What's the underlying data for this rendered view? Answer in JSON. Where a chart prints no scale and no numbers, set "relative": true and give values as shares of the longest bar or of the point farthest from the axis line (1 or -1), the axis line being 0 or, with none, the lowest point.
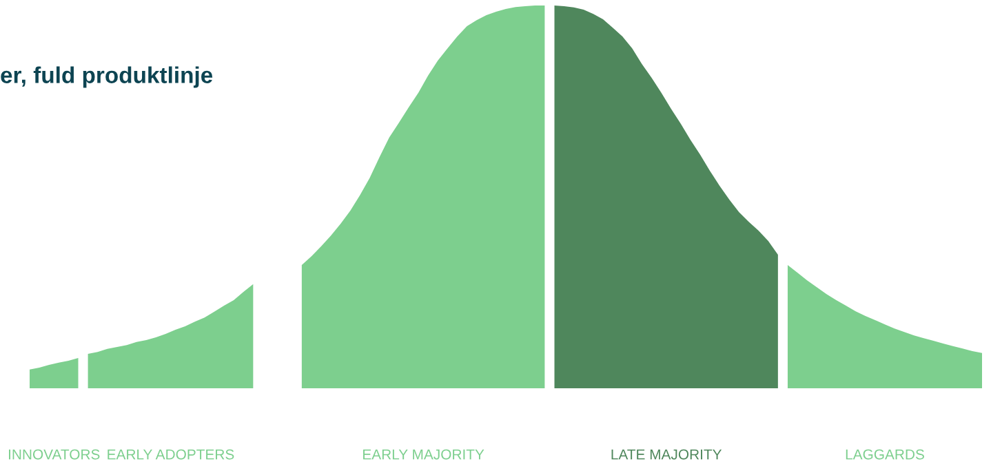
{
  "chart_data": {
    "type": "area",
    "title": "er, fuld produktlinje",
    "relative": true,
    "annotations": [
      "INNOVATORS",
      "EARLY ADOPTERS",
      "EARLY MAJORITY",
      "LATE MAJORITY",
      "LAGGARDS"
    ],
    "categories": [
      null,
      null,
      null,
      null,
      null,
      null,
      null,
      null,
      null,
      null,
      null,
      null,
      null,
      null,
      null,
      null,
      null,
      null,
      null,
      null,
      null,
      null,
      null,
      null,
      null,
      null,
      null,
      null,
      null,
      null,
      null,
      null,
      null,
      null,
      null,
      null,
      null,
      null,
      null,
      null,
      null,
      null,
      null,
      null,
      null,
      null,
      null,
      null,
      null,
      null,
      null,
      null,
      null,
      null,
      null,
      null,
      null,
      null,
      null,
      null,
      null,
      null,
      null,
      null,
      null,
      null,
      null,
      null,
      null,
      null,
      null,
      null,
      null,
      null,
      null,
      null,
      null,
      null,
      null,
      null,
      null,
      null,
      null,
      null,
      null,
      null,
      null,
      null,
      null,
      null,
      null,
      null,
      null,
      null,
      null,
      null,
      null,
      null,
      null
    ],
    "series": [
      {
        "color": "#7dcf8e",
        "values": [
          0.049,
          0.054,
          0.061,
          0.067,
          0.072,
          0.079,
          null,
          null,
          null,
          null,
          null,
          null,
          null,
          null,
          null,
          null,
          null,
          null,
          null,
          null,
          null,
          null,
          null,
          null,
          null,
          null,
          null,
          null,
          null,
          null,
          null,
          null,
          null,
          null,
          null,
          null,
          null,
          null,
          null,
          null,
          null,
          null,
          null,
          null,
          null,
          null,
          null,
          null,
          null,
          null,
          null,
          null,
          null,
          null,
          null,
          null,
          null,
          null,
          null,
          null,
          null,
          null,
          null,
          null,
          null,
          null,
          null,
          null,
          null,
          null,
          null,
          null,
          null,
          null,
          null,
          null,
          null,
          null,
          null,
          null,
          null,
          null,
          null,
          null,
          null,
          null,
          null,
          null,
          null,
          null,
          null,
          null,
          null,
          null,
          null,
          null,
          null,
          null,
          null
        ]
      },
      {
        "color": "#7dcf8e",
        "values": [
          null,
          null,
          null,
          null,
          null,
          null,
          0.09,
          0.095,
          0.103,
          0.108,
          0.113,
          0.121,
          0.126,
          0.133,
          0.142,
          0.153,
          0.162,
          0.174,
          0.185,
          0.2,
          0.216,
          0.23,
          0.252,
          0.272,
          null,
          null,
          null,
          null,
          null,
          null,
          null,
          null,
          null,
          null,
          null,
          null,
          null,
          null,
          null,
          null,
          null,
          null,
          null,
          null,
          null,
          null,
          null,
          null,
          null,
          null,
          null,
          null,
          null,
          null,
          null,
          null,
          null,
          null,
          null,
          null,
          null,
          null,
          null,
          null,
          null,
          null,
          null,
          null,
          null,
          null,
          null,
          null,
          null,
          null,
          null,
          null,
          null,
          null,
          null,
          null,
          null,
          null,
          null,
          null,
          null,
          null,
          null,
          null,
          null,
          null,
          null,
          null,
          null,
          null,
          null,
          null,
          null,
          null,
          null
        ]
      },
      {
        "color": "#7dcf8e",
        "values": [
          null,
          null,
          null,
          null,
          null,
          null,
          null,
          null,
          null,
          null,
          null,
          null,
          null,
          null,
          null,
          null,
          null,
          null,
          null,
          null,
          null,
          null,
          null,
          null,
          null,
          null,
          null,
          null,
          0.322,
          0.345,
          0.371,
          0.399,
          0.43,
          0.464,
          0.505,
          0.55,
          0.604,
          0.655,
          0.694,
          0.734,
          0.772,
          0.817,
          0.856,
          0.888,
          0.919,
          0.946,
          0.962,
          0.975,
          0.984,
          0.991,
          0.996,
          0.998,
          1.0,
          1.0,
          null,
          null,
          null,
          null,
          null,
          null,
          null,
          null,
          null,
          null,
          null,
          null,
          null,
          null,
          null,
          null,
          null,
          null,
          null,
          null,
          null,
          null,
          null,
          null,
          null,
          null,
          null,
          null,
          null,
          null,
          null,
          null,
          null,
          null,
          null,
          null,
          null,
          null,
          null,
          null,
          null,
          null,
          null,
          null,
          null
        ]
      },
      {
        "color": "#4f875c",
        "values": [
          null,
          null,
          null,
          null,
          null,
          null,
          null,
          null,
          null,
          null,
          null,
          null,
          null,
          null,
          null,
          null,
          null,
          null,
          null,
          null,
          null,
          null,
          null,
          null,
          null,
          null,
          null,
          null,
          null,
          null,
          null,
          null,
          null,
          null,
          null,
          null,
          null,
          null,
          null,
          null,
          null,
          null,
          null,
          null,
          null,
          null,
          null,
          null,
          null,
          null,
          null,
          null,
          null,
          null,
          1.0,
          0.998,
          0.995,
          0.989,
          0.978,
          0.964,
          0.942,
          0.919,
          0.888,
          0.847,
          0.811,
          0.772,
          0.73,
          0.691,
          0.649,
          0.61,
          0.568,
          0.529,
          0.493,
          0.46,
          0.435,
          0.412,
          0.385,
          0.349,
          null,
          null,
          null,
          null,
          null,
          null,
          null,
          null,
          null,
          null,
          null,
          null,
          null,
          null,
          null,
          null,
          null,
          null,
          null,
          null,
          null
        ]
      },
      {
        "color": "#7dcf8e",
        "values": [
          null,
          null,
          null,
          null,
          null,
          null,
          null,
          null,
          null,
          null,
          null,
          null,
          null,
          null,
          null,
          null,
          null,
          null,
          null,
          null,
          null,
          null,
          null,
          null,
          null,
          null,
          null,
          null,
          null,
          null,
          null,
          null,
          null,
          null,
          null,
          null,
          null,
          null,
          null,
          null,
          null,
          null,
          null,
          null,
          null,
          null,
          null,
          null,
          null,
          null,
          null,
          null,
          null,
          null,
          null,
          null,
          null,
          null,
          null,
          null,
          null,
          null,
          null,
          null,
          null,
          null,
          null,
          null,
          null,
          null,
          null,
          null,
          null,
          null,
          null,
          null,
          null,
          null,
          0.322,
          0.302,
          0.282,
          0.264,
          0.246,
          0.23,
          0.216,
          0.201,
          0.189,
          0.178,
          0.167,
          0.156,
          0.147,
          0.138,
          0.131,
          0.124,
          0.117,
          0.11,
          0.104,
          0.097,
          0.092
        ]
      }
    ]
  }
}
